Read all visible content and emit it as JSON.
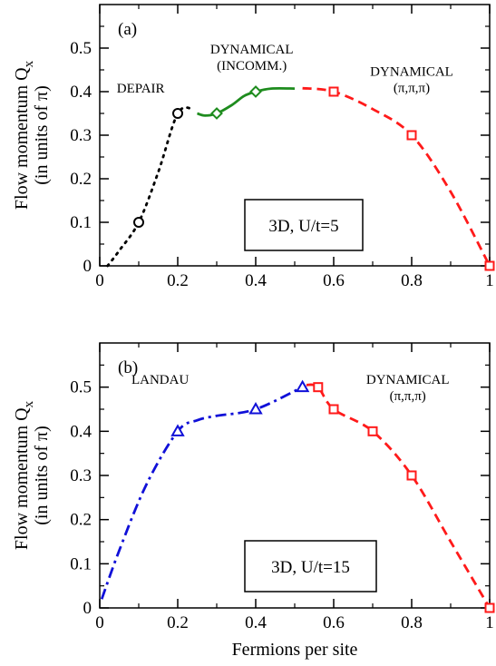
{
  "colors": {
    "depair": "#000000",
    "incomm": "#1e8c1e",
    "dynamical": "#ff1a1a",
    "landau": "#1010d8"
  },
  "chart_data": [
    {
      "type": "line",
      "panel_label": "(a)",
      "box_label": "3D, U/t=5",
      "ylabel_line1": "Flow momentum Q",
      "ylabel_sub": "x",
      "ylabel_line2": "(in units of π)",
      "xlabel": "",
      "xlim": [
        0,
        1
      ],
      "ylim": [
        0,
        0.6
      ],
      "xticks": [
        "0",
        "0.2",
        "0.4",
        "0.6",
        "0.8",
        "1"
      ],
      "yticks": [
        "0",
        "0.1",
        "0.2",
        "0.3",
        "0.4",
        "0.5"
      ],
      "annotations": [
        {
          "lines": [
            "DEPAIR"
          ],
          "x": 0.105,
          "y": 0.398
        },
        {
          "lines": [
            "DYNAMICAL",
            "(INCOMM.)"
          ],
          "x": 0.39,
          "y": 0.487
        },
        {
          "lines": [
            "DYNAMICAL",
            "(π,π,π)"
          ],
          "x": 0.8,
          "y": 0.436
        }
      ],
      "series": [
        {
          "id": "depair",
          "marker": "circle",
          "style": "dotted",
          "color_key": "depair",
          "points": [
            [
              0.1,
              0.1
            ],
            [
              0.2,
              0.35
            ]
          ],
          "curve": [
            [
              0.02,
              0.0
            ],
            [
              0.05,
              0.035
            ],
            [
              0.1,
              0.1
            ],
            [
              0.15,
              0.215
            ],
            [
              0.2,
              0.35
            ],
            [
              0.24,
              0.36
            ]
          ]
        },
        {
          "id": "incomm",
          "marker": "diamond",
          "style": "solid",
          "color_key": "incomm",
          "points": [
            [
              0.3,
              0.35
            ],
            [
              0.4,
              0.4
            ]
          ],
          "curve": [
            [
              0.25,
              0.35
            ],
            [
              0.27,
              0.345
            ],
            [
              0.3,
              0.35
            ],
            [
              0.34,
              0.37
            ],
            [
              0.37,
              0.39
            ],
            [
              0.4,
              0.4
            ],
            [
              0.44,
              0.407
            ],
            [
              0.5,
              0.407
            ]
          ]
        },
        {
          "id": "dynamical",
          "marker": "square",
          "style": "dashed",
          "color_key": "dynamical",
          "points": [
            [
              0.6,
              0.4
            ],
            [
              0.8,
              0.3
            ],
            [
              1.0,
              0.0
            ]
          ],
          "curve": [
            [
              0.52,
              0.408
            ],
            [
              0.6,
              0.4
            ],
            [
              0.7,
              0.36
            ],
            [
              0.8,
              0.3
            ],
            [
              0.9,
              0.17
            ],
            [
              1.0,
              0.0
            ]
          ]
        }
      ]
    },
    {
      "type": "line",
      "panel_label": "(b)",
      "box_label": "3D, U/t=15",
      "ylabel_line1": "Flow momentum Q",
      "ylabel_sub": "x",
      "ylabel_line2": "(in units of π)",
      "xlabel": "Fermions per site",
      "xlim": [
        0,
        1
      ],
      "ylim": [
        0,
        0.6
      ],
      "xticks": [
        "0",
        "0.2",
        "0.4",
        "0.6",
        "0.8",
        "1"
      ],
      "yticks": [
        "0",
        "0.1",
        "0.2",
        "0.3",
        "0.4",
        "0.5"
      ],
      "annotations": [
        {
          "lines": [
            "LANDAU"
          ],
          "x": 0.155,
          "y": 0.508
        },
        {
          "lines": [
            "DYNAMICAL",
            "(π,π,π)"
          ],
          "x": 0.79,
          "y": 0.508
        }
      ],
      "series": [
        {
          "id": "landau",
          "marker": "triangle",
          "style": "dashdot",
          "color_key": "landau",
          "points": [
            [
              0.2,
              0.4
            ],
            [
              0.4,
              0.45
            ],
            [
              0.52,
              0.5
            ]
          ],
          "curve": [
            [
              0.005,
              0.02
            ],
            [
              0.05,
              0.13
            ],
            [
              0.12,
              0.28
            ],
            [
              0.2,
              0.4
            ],
            [
              0.25,
              0.425
            ],
            [
              0.3,
              0.435
            ],
            [
              0.4,
              0.45
            ],
            [
              0.52,
              0.5
            ]
          ]
        },
        {
          "id": "dynamical",
          "marker": "square",
          "style": "dashed",
          "color_key": "dynamical",
          "points": [
            [
              0.56,
              0.5
            ],
            [
              0.6,
              0.45
            ],
            [
              0.7,
              0.4
            ],
            [
              0.8,
              0.3
            ],
            [
              1.0,
              0.0
            ]
          ],
          "curve": [
            [
              0.53,
              0.505
            ],
            [
              0.56,
              0.5
            ],
            [
              0.6,
              0.45
            ],
            [
              0.7,
              0.4
            ],
            [
              0.8,
              0.3
            ],
            [
              0.9,
              0.15
            ],
            [
              1.0,
              0.0
            ]
          ]
        }
      ]
    }
  ]
}
